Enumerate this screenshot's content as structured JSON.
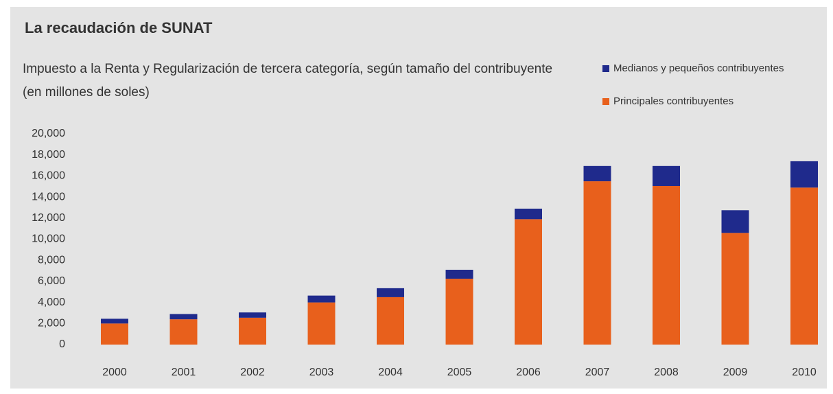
{
  "chart_data": {
    "type": "stacked-bar",
    "title": "La recaudación de SUNAT",
    "subtitle": "Impuesto a la Renta y Regularización  de tercera categoría, según tamaño del contribuyente (en millones de soles)",
    "categories": [
      "2000",
      "2001",
      "2002",
      "2003",
      "2004",
      "2005",
      "2006",
      "2007",
      "2008",
      "2009",
      "2010"
    ],
    "series": [
      {
        "name": "Principales contribuyentes",
        "color": "#e8601c",
        "values": [
          2000,
          2400,
          2550,
          4000,
          4500,
          6250,
          11900,
          15500,
          15050,
          10600,
          14900
        ]
      },
      {
        "name": "Medianos y pequeños contribuyentes",
        "color": "#1f2a8c",
        "values": [
          450,
          500,
          500,
          650,
          850,
          850,
          1000,
          1450,
          1900,
          2150,
          2500
        ]
      }
    ],
    "ylim": [
      0,
      20000
    ],
    "yticks": [
      0,
      {
        "value": 2000,
        "label": "2,000"
      },
      {
        "value": 4000,
        "label": "4,000"
      },
      {
        "value": 6000,
        "label": "6,000"
      },
      {
        "value": 8000,
        "label": "8,000"
      },
      {
        "value": 10000,
        "label": "10,000"
      },
      {
        "value": 12000,
        "label": "12,000"
      },
      {
        "value": 14000,
        "label": "14,000"
      },
      {
        "value": 16000,
        "label": "16,000"
      },
      {
        "value": 18000,
        "label": "18,000"
      },
      {
        "value": 20000,
        "label": "20,000"
      }
    ],
    "grid": false
  }
}
